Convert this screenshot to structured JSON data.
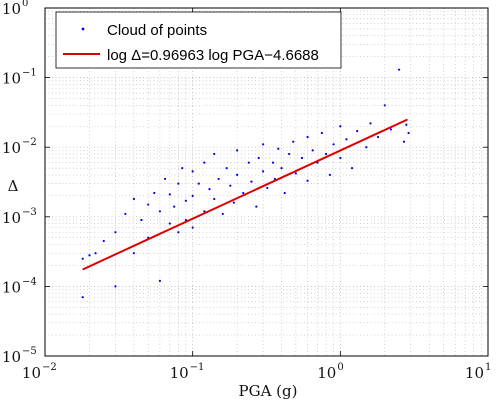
{
  "chart_data": {
    "type": "scatter",
    "xlabel": "PGA (g)",
    "ylabel": "Δ",
    "x_scale": "log",
    "y_scale": "log",
    "xlim": [
      0.01,
      10
    ],
    "ylim": [
      1e-05,
      1
    ],
    "grid": true,
    "legend_position": "top-left",
    "x_ticks": [
      {
        "base": "10",
        "exp": "−2",
        "value": 0.01
      },
      {
        "base": "10",
        "exp": "−1",
        "value": 0.1
      },
      {
        "base": "10",
        "exp": "0",
        "value": 1
      },
      {
        "base": "10",
        "exp": "1",
        "value": 10
      }
    ],
    "y_ticks": [
      {
        "base": "10",
        "exp": "−5",
        "value": 1e-05
      },
      {
        "base": "10",
        "exp": "−4",
        "value": 0.0001
      },
      {
        "base": "10",
        "exp": "−3",
        "value": 0.001
      },
      {
        "base": "10",
        "exp": "−2",
        "value": 0.01
      },
      {
        "base": "10",
        "exp": "−1",
        "value": 0.1
      },
      {
        "base": "10",
        "exp": "0",
        "value": 1
      }
    ],
    "series": [
      {
        "name": "Cloud of points",
        "kind": "scatter",
        "color": "#0000ff",
        "points": [
          [
            0.018,
            7e-05
          ],
          [
            0.018,
            0.00025
          ],
          [
            0.02,
            0.00028
          ],
          [
            0.022,
            0.0003
          ],
          [
            0.025,
            0.00045
          ],
          [
            0.03,
            0.0001
          ],
          [
            0.03,
            0.0006
          ],
          [
            0.035,
            0.0011
          ],
          [
            0.04,
            0.0003
          ],
          [
            0.04,
            0.0018
          ],
          [
            0.045,
            0.0009
          ],
          [
            0.05,
            0.0005
          ],
          [
            0.05,
            0.0015
          ],
          [
            0.055,
            0.0022
          ],
          [
            0.06,
            0.00012
          ],
          [
            0.06,
            0.0012
          ],
          [
            0.065,
            0.0035
          ],
          [
            0.07,
            0.0008
          ],
          [
            0.07,
            0.0021
          ],
          [
            0.075,
            0.0014
          ],
          [
            0.08,
            0.0006
          ],
          [
            0.08,
            0.003
          ],
          [
            0.085,
            0.005
          ],
          [
            0.09,
            0.0017
          ],
          [
            0.09,
            0.0009
          ],
          [
            0.1,
            0.002
          ],
          [
            0.1,
            0.0045
          ],
          [
            0.1,
            0.0007
          ],
          [
            0.11,
            0.003
          ],
          [
            0.12,
            0.0012
          ],
          [
            0.12,
            0.006
          ],
          [
            0.13,
            0.0025
          ],
          [
            0.14,
            0.0018
          ],
          [
            0.14,
            0.008
          ],
          [
            0.15,
            0.0035
          ],
          [
            0.16,
            0.0011
          ],
          [
            0.17,
            0.005
          ],
          [
            0.18,
            0.0028
          ],
          [
            0.19,
            0.0016
          ],
          [
            0.2,
            0.004
          ],
          [
            0.2,
            0.009
          ],
          [
            0.22,
            0.0022
          ],
          [
            0.24,
            0.006
          ],
          [
            0.25,
            0.0032
          ],
          [
            0.27,
            0.0014
          ],
          [
            0.28,
            0.007
          ],
          [
            0.3,
            0.0045
          ],
          [
            0.3,
            0.011
          ],
          [
            0.32,
            0.0026
          ],
          [
            0.35,
            0.006
          ],
          [
            0.36,
            0.0035
          ],
          [
            0.38,
            0.0095
          ],
          [
            0.4,
            0.005
          ],
          [
            0.42,
            0.0022
          ],
          [
            0.45,
            0.008
          ],
          [
            0.48,
            0.012
          ],
          [
            0.5,
            0.0042
          ],
          [
            0.55,
            0.007
          ],
          [
            0.6,
            0.014
          ],
          [
            0.6,
            0.0033
          ],
          [
            0.65,
            0.009
          ],
          [
            0.7,
            0.006
          ],
          [
            0.75,
            0.016
          ],
          [
            0.8,
            0.008
          ],
          [
            0.85,
            0.004
          ],
          [
            0.9,
            0.011
          ],
          [
            1.0,
            0.007
          ],
          [
            1.0,
            0.02
          ],
          [
            1.1,
            0.013
          ],
          [
            1.2,
            0.005
          ],
          [
            1.3,
            0.017
          ],
          [
            1.5,
            0.01
          ],
          [
            1.6,
            0.022
          ],
          [
            1.8,
            0.014
          ],
          [
            2.0,
            0.04
          ],
          [
            2.2,
            0.018
          ],
          [
            2.5,
            0.13
          ],
          [
            2.7,
            0.012
          ],
          [
            2.8,
            0.021
          ],
          [
            2.9,
            0.016
          ]
        ]
      },
      {
        "name": "log Δ=0.96963 log PGA−4.6688",
        "kind": "line",
        "color": "#dd0000",
        "x": [
          0.018,
          2.85
        ],
        "y": [
          0.000175,
          0.025
        ]
      }
    ]
  }
}
